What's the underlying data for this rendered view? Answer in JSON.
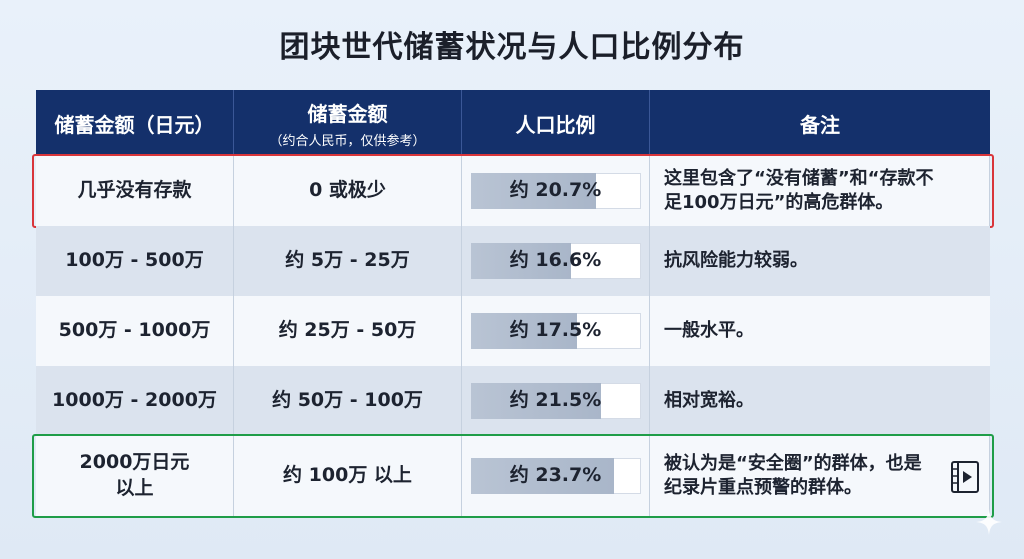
{
  "title": "团块世代储蓄状况与人口比例分布",
  "header": {
    "col1": "储蓄金额（日元）",
    "col2": "储蓄金额",
    "col2_sub": "（约合人民币，仅供参考）",
    "col3": "人口比例",
    "col4": "备注"
  },
  "rows": [
    {
      "jpy": "几乎没有存款",
      "rmb": "0 或极少",
      "ratio_label": "约 20.7%",
      "ratio": 20.7,
      "note": "这里包含了“没有储蓄”和“存款不足100万日元”的高危群体。"
    },
    {
      "jpy": "100万 - 500万",
      "rmb": "约 5万 - 25万",
      "ratio_label": "约 16.6%",
      "ratio": 16.6,
      "note": "抗风险能力较弱。"
    },
    {
      "jpy": "500万 - 1000万",
      "rmb": "约 25万 - 50万",
      "ratio_label": "约 17.5%",
      "ratio": 17.5,
      "note": "一般水平。"
    },
    {
      "jpy": "1000万 - 2000万",
      "rmb": "约 50万 - 100万",
      "ratio_label": "约 21.5%",
      "ratio": 21.5,
      "note": "相对宽裕。"
    },
    {
      "jpy": "2000万日元以上",
      "rmb": "约 100万 以上",
      "ratio_label": "约 23.7%",
      "ratio": 23.7,
      "note": "被认为是“安全圈”的群体，也是纪录片重点预警的群体。"
    }
  ],
  "bar_scale_max": 28,
  "colors": {
    "header_bg": "#14306b",
    "highlight_red": "#d9353a",
    "highlight_green": "#1f9d48"
  },
  "icons": {
    "video": "video-file-icon",
    "sparkle": "sparkle-icon"
  }
}
